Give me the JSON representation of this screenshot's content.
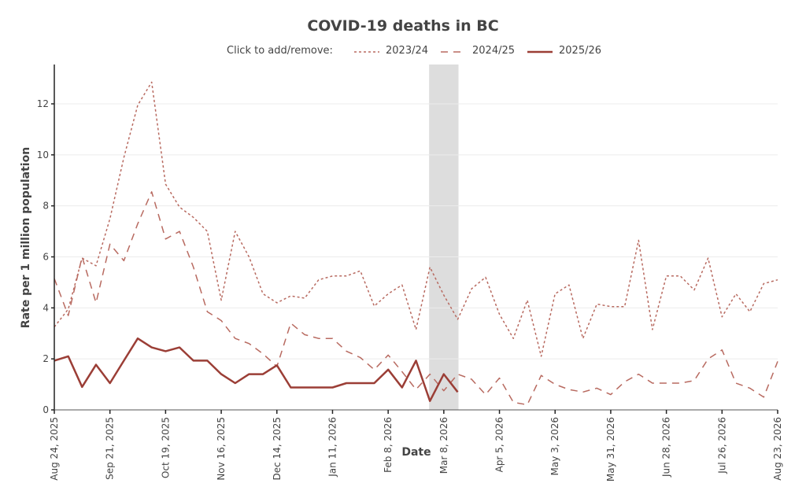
{
  "chart_data": {
    "type": "line",
    "title": "COVID-19 deaths in BC",
    "xlabel": "Date",
    "ylabel": "Rate per 1 million population",
    "ylim": [
      0,
      13.5
    ],
    "yticks": [
      0,
      2,
      4,
      6,
      8,
      10,
      12
    ],
    "grid": true,
    "legend_hint": "Click to add/remove:",
    "legend_position": "top-center",
    "x_start": "Aug 24, 2025",
    "x_end": "Aug 23, 2026",
    "x_unit": "week",
    "xtick_labels": [
      "Aug 24, 2025",
      "Sep 21, 2025",
      "Oct 19, 2025",
      "Nov 16, 2025",
      "Dec 14, 2025",
      "Jan 11, 2026",
      "Feb 8, 2026",
      "Mar 8, 2026",
      "Apr 5, 2026",
      "May 3, 2026",
      "May 31, 2026",
      "Jun 28, 2026",
      "Jul 26, 2026",
      "Aug 23, 2026"
    ],
    "xtick_week_index": [
      0,
      4,
      8,
      12,
      16,
      20,
      24,
      28,
      32,
      36,
      40,
      44,
      48,
      52
    ],
    "highlight_weeks": [
      27,
      29
    ],
    "colors": {
      "current": "#9b3e36",
      "previous": "#b86a60",
      "highlight": "#dddddd",
      "grid": "#ececec"
    },
    "series": [
      {
        "name": "2023/24",
        "style": "dotted",
        "values": [
          3.25,
          3.95,
          5.95,
          5.65,
          7.5,
          9.9,
          11.95,
          12.85,
          8.85,
          7.95,
          7.55,
          7.0,
          4.3,
          7.0,
          6.0,
          4.55,
          4.2,
          4.47,
          4.38,
          5.1,
          5.25,
          5.25,
          5.45,
          4.07,
          4.55,
          4.9,
          3.15,
          5.6,
          4.5,
          3.55,
          4.75,
          5.2,
          3.75,
          2.8,
          4.3,
          2.1,
          4.55,
          4.9,
          2.8,
          4.15,
          4.05,
          4.05,
          6.65,
          3.15,
          5.25,
          5.25,
          4.7,
          5.95,
          3.65,
          4.55,
          3.85,
          4.95,
          5.1
        ]
      },
      {
        "name": "2024/25",
        "style": "dashed",
        "values": [
          5.15,
          3.7,
          6.0,
          4.2,
          6.5,
          5.85,
          7.3,
          8.55,
          6.7,
          7.0,
          5.6,
          3.85,
          3.5,
          2.8,
          2.6,
          2.2,
          1.7,
          3.4,
          2.95,
          2.8,
          2.8,
          2.3,
          2.05,
          1.58,
          2.15,
          1.5,
          0.8,
          1.4,
          0.75,
          1.4,
          1.2,
          0.6,
          1.25,
          0.3,
          0.2,
          1.35,
          1.0,
          0.8,
          0.7,
          0.85,
          0.6,
          1.1,
          1.4,
          1.05,
          1.05,
          1.05,
          1.15,
          2.0,
          2.35,
          1.05,
          0.85,
          0.5,
          1.9
        ]
      },
      {
        "name": "2025/26",
        "style": "solid",
        "values": [
          1.93,
          2.1,
          0.9,
          1.77,
          1.05,
          1.93,
          2.8,
          2.45,
          2.3,
          2.45,
          1.93,
          1.93,
          1.4,
          1.05,
          1.4,
          1.4,
          1.75,
          0.88,
          0.88,
          0.88,
          0.88,
          1.05,
          1.05,
          1.05,
          1.58,
          0.88,
          1.93,
          0.35,
          1.4,
          0.7
        ]
      }
    ]
  }
}
